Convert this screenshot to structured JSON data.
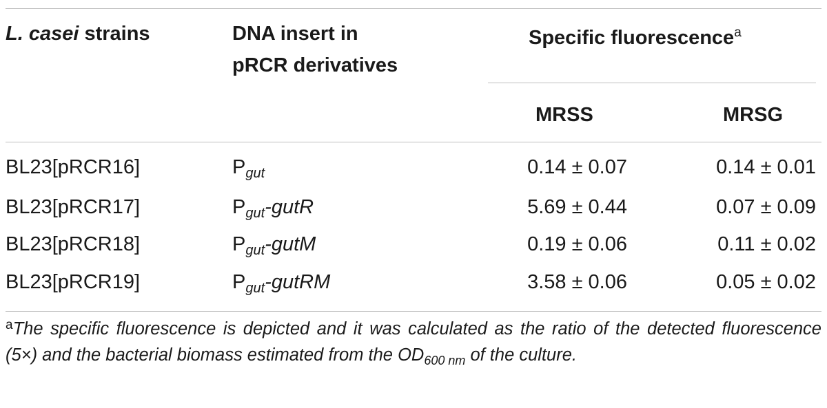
{
  "header": {
    "strains_species": "L. casei",
    "strains_rest": " strains",
    "insert_line1": "DNA insert in",
    "insert_line2": "pRCR derivatives",
    "spec_fluor": "Specific fluorescence",
    "spec_fluor_sup": "a",
    "col_mrss": "MRSS",
    "col_mrsg": "MRSG"
  },
  "rows": [
    {
      "strain": "BL23[pRCR16]",
      "insert_p": "P",
      "insert_sub": "gut",
      "insert_suffix": "",
      "mrss": "0.14 ± 0.07",
      "mrsg": "0.14 ± 0.01"
    },
    {
      "strain": "BL23[pRCR17]",
      "insert_p": "P",
      "insert_sub": "gut",
      "insert_suffix": "-gutR",
      "mrss": "5.69 ± 0.44",
      "mrsg": "0.07 ± 0.09"
    },
    {
      "strain": "BL23[pRCR18]",
      "insert_p": "P",
      "insert_sub": "gut",
      "insert_suffix": "-gutM",
      "mrss": "0.19 ± 0.06",
      "mrsg": "0.11 ± 0.02"
    },
    {
      "strain": "BL23[pRCR19]",
      "insert_p": "P",
      "insert_sub": "gut",
      "insert_suffix": "-gutRM",
      "mrss": "3.58 ± 0.06",
      "mrsg": "0.05 ± 0.02"
    }
  ],
  "footnote": {
    "marker": "a",
    "text1": "The specific fluorescence is depicted and it was calculated as the ratio of the detected fluorescence (5×) and the bacterial biomass estimated from the OD",
    "od_sub": "600 nm",
    "text2": " of the culture."
  }
}
